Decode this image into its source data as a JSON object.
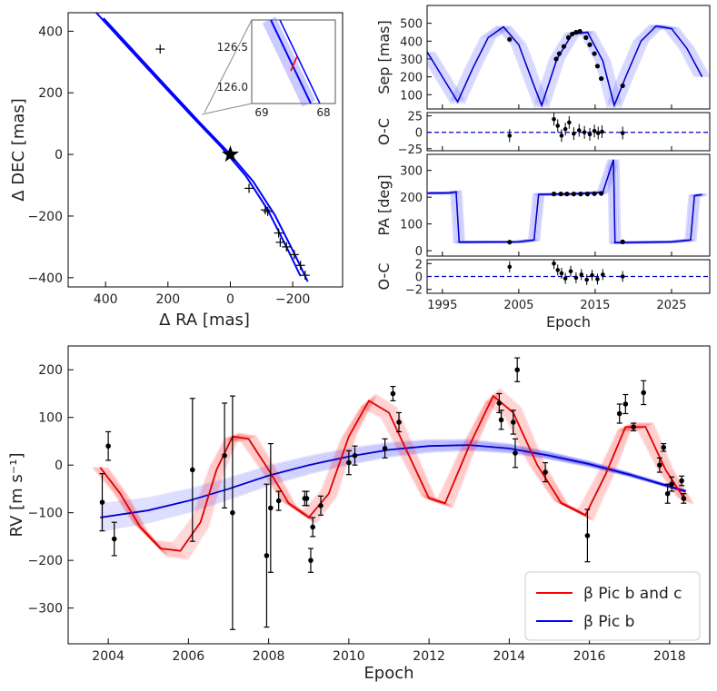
{
  "chart_data": [
    {
      "id": "orbit",
      "type": "scatter",
      "xlabel": "Δ RA [mas]",
      "ylabel": "Δ DEC [mas]",
      "xlim": [
        520,
        -360
      ],
      "ylim": [
        -430,
        460
      ],
      "xticks": [
        400,
        200,
        0,
        -200
      ],
      "xtick_labels": [
        "400",
        "200",
        "0",
        "−200"
      ],
      "yticks": [
        400,
        200,
        0,
        -200,
        -400
      ],
      "ytick_labels": [
        "400",
        "200",
        "0",
        "−200",
        "−400"
      ],
      "star": {
        "x": 0,
        "y": 0
      },
      "orbit_points": [
        {
          "x": 430,
          "y": 460
        },
        {
          "x": 230,
          "y": 240
        },
        {
          "x": 120,
          "y": 120
        },
        {
          "x": 30,
          "y": 25
        },
        {
          "x": -50,
          "y": -70
        },
        {
          "x": -120,
          "y": -180
        },
        {
          "x": -180,
          "y": -300
        },
        {
          "x": -225,
          "y": -395
        }
      ],
      "data_points": [
        {
          "x": 225,
          "y": 342
        },
        {
          "x": -112,
          "y": -180
        },
        {
          "x": -120,
          "y": -185
        },
        {
          "x": -155,
          "y": -255
        },
        {
          "x": -160,
          "y": -285
        },
        {
          "x": -180,
          "y": -300
        },
        {
          "x": -205,
          "y": -325
        },
        {
          "x": -225,
          "y": -360
        },
        {
          "x": -240,
          "y": -392
        },
        {
          "x": -60,
          "y": -110
        }
      ],
      "inset": {
        "xticks": [
          "69",
          "68"
        ],
        "yticks": [
          "126.5",
          "126.0"
        ]
      }
    },
    {
      "id": "sep",
      "type": "line",
      "ylabel": "Sep [mas]",
      "xlim": [
        1993,
        2030
      ],
      "ylim": [
        20,
        600
      ],
      "yticks": [
        100,
        200,
        300,
        400,
        500
      ],
      "ytick_labels": [
        "100",
        "200",
        "300",
        "400",
        "500"
      ],
      "curve": [
        {
          "x": 1993,
          "y": 340
        },
        {
          "x": 1995,
          "y": 200
        },
        {
          "x": 1997,
          "y": 60
        },
        {
          "x": 1999,
          "y": 250
        },
        {
          "x": 2001,
          "y": 420
        },
        {
          "x": 2003,
          "y": 480
        },
        {
          "x": 2005,
          "y": 380
        },
        {
          "x": 2007,
          "y": 150
        },
        {
          "x": 2008,
          "y": 40
        },
        {
          "x": 2010,
          "y": 300
        },
        {
          "x": 2012,
          "y": 440
        },
        {
          "x": 2014,
          "y": 450
        },
        {
          "x": 2016,
          "y": 290
        },
        {
          "x": 2017.5,
          "y": 40
        },
        {
          "x": 2019,
          "y": 200
        },
        {
          "x": 2021,
          "y": 400
        },
        {
          "x": 2023,
          "y": 485
        },
        {
          "x": 2025,
          "y": 470
        },
        {
          "x": 2027,
          "y": 360
        },
        {
          "x": 2029,
          "y": 200
        }
      ],
      "points": [
        {
          "x": 2003.8,
          "y": 410
        },
        {
          "x": 2009.9,
          "y": 300
        },
        {
          "x": 2010.3,
          "y": 330
        },
        {
          "x": 2010.9,
          "y": 370
        },
        {
          "x": 2011.5,
          "y": 420
        },
        {
          "x": 2012,
          "y": 440
        },
        {
          "x": 2012.5,
          "y": 450
        },
        {
          "x": 2013,
          "y": 455
        },
        {
          "x": 2013.8,
          "y": 420
        },
        {
          "x": 2014.3,
          "y": 380
        },
        {
          "x": 2014.9,
          "y": 330
        },
        {
          "x": 2015.3,
          "y": 260
        },
        {
          "x": 2015.8,
          "y": 190
        },
        {
          "x": 2018.6,
          "y": 150
        }
      ]
    },
    {
      "id": "sep_oc",
      "type": "scatter",
      "ylabel": "O-C",
      "xlim": [
        1993,
        2030
      ],
      "ylim": [
        -28,
        30
      ],
      "yticks": [
        25,
        0,
        -25
      ],
      "ytick_labels": [
        "25",
        "0",
        "−25"
      ],
      "points": [
        {
          "x": 2003.8,
          "y": -5
        },
        {
          "x": 2009.6,
          "y": 20
        },
        {
          "x": 2010.1,
          "y": 10
        },
        {
          "x": 2010.6,
          "y": -5
        },
        {
          "x": 2011.1,
          "y": 5
        },
        {
          "x": 2011.6,
          "y": 15
        },
        {
          "x": 2012.2,
          "y": -2
        },
        {
          "x": 2012.9,
          "y": 3
        },
        {
          "x": 2013.6,
          "y": 0
        },
        {
          "x": 2014.3,
          "y": -3
        },
        {
          "x": 2014.9,
          "y": 2
        },
        {
          "x": 2015.4,
          "y": -1
        },
        {
          "x": 2015.9,
          "y": 1
        },
        {
          "x": 2018.6,
          "y": -1
        }
      ]
    },
    {
      "id": "pa",
      "type": "line",
      "ylabel": "PA [deg]",
      "xlim": [
        1993,
        2030
      ],
      "ylim": [
        -20,
        360
      ],
      "yticks": [
        0,
        100,
        200,
        300
      ],
      "ytick_labels": [
        "0",
        "100",
        "200",
        "300"
      ],
      "curve": [
        {
          "x": 1993,
          "y": 215
        },
        {
          "x": 1996,
          "y": 216
        },
        {
          "x": 1996.8,
          "y": 220
        },
        {
          "x": 1997.2,
          "y": 32
        },
        {
          "x": 2005,
          "y": 33
        },
        {
          "x": 2007,
          "y": 40
        },
        {
          "x": 2007.6,
          "y": 210
        },
        {
          "x": 2012,
          "y": 212
        },
        {
          "x": 2016,
          "y": 218
        },
        {
          "x": 2017.4,
          "y": 340
        },
        {
          "x": 2017.6,
          "y": 30
        },
        {
          "x": 2025,
          "y": 33
        },
        {
          "x": 2027.5,
          "y": 40
        },
        {
          "x": 2028,
          "y": 205
        },
        {
          "x": 2029,
          "y": 210
        }
      ],
      "points": [
        {
          "x": 2003.8,
          "y": 32
        },
        {
          "x": 2009.6,
          "y": 212
        },
        {
          "x": 2010.5,
          "y": 212
        },
        {
          "x": 2011.3,
          "y": 212
        },
        {
          "x": 2012.2,
          "y": 212
        },
        {
          "x": 2013.1,
          "y": 212
        },
        {
          "x": 2014,
          "y": 212
        },
        {
          "x": 2014.9,
          "y": 213
        },
        {
          "x": 2015.8,
          "y": 214
        },
        {
          "x": 2018.6,
          "y": 33
        }
      ]
    },
    {
      "id": "pa_oc",
      "type": "scatter",
      "xlabel": "Epoch",
      "ylabel": "O-C",
      "xlim": [
        1993,
        2030
      ],
      "ylim": [
        -2.6,
        2.6
      ],
      "yticks": [
        2,
        0,
        -2
      ],
      "ytick_labels": [
        "2",
        "0",
        "−2"
      ],
      "xticks": [
        1995,
        2005,
        2015,
        2025
      ],
      "xtick_labels": [
        "1995",
        "2005",
        "2015",
        "2025"
      ],
      "points": [
        {
          "x": 2003.8,
          "y": 1.5
        },
        {
          "x": 2009.6,
          "y": 2.0
        },
        {
          "x": 2010.1,
          "y": 1.0
        },
        {
          "x": 2010.6,
          "y": 0.5
        },
        {
          "x": 2011.1,
          "y": -0.3
        },
        {
          "x": 2011.8,
          "y": 0.8
        },
        {
          "x": 2012.5,
          "y": -0.2
        },
        {
          "x": 2013.2,
          "y": 0.3
        },
        {
          "x": 2013.9,
          "y": -0.5
        },
        {
          "x": 2014.6,
          "y": 0.2
        },
        {
          "x": 2015.3,
          "y": -0.4
        },
        {
          "x": 2016,
          "y": 0.3
        },
        {
          "x": 2018.6,
          "y": 0.0
        }
      ]
    },
    {
      "id": "rv",
      "type": "line",
      "xlabel": "Epoch",
      "ylabel": "RV [m s⁻¹]",
      "xlim": [
        2003,
        2019
      ],
      "ylim": [
        -375,
        250
      ],
      "xticks": [
        2004,
        2006,
        2008,
        2010,
        2012,
        2014,
        2016,
        2018
      ],
      "xtick_labels": [
        "2004",
        "2006",
        "2008",
        "2010",
        "2012",
        "2014",
        "2016",
        "2018"
      ],
      "yticks": [
        200,
        100,
        0,
        -100,
        -200,
        -300
      ],
      "ytick_labels": [
        "200",
        "100",
        "0",
        "−100",
        "−200",
        "−300"
      ],
      "series": [
        {
          "name": "β Pic b and c",
          "color": "#ff0000",
          "curve": [
            {
              "x": 2003.8,
              "y": -5
            },
            {
              "x": 2004.3,
              "y": -60
            },
            {
              "x": 2004.8,
              "y": -130
            },
            {
              "x": 2005.3,
              "y": -175
            },
            {
              "x": 2005.8,
              "y": -180
            },
            {
              "x": 2006.3,
              "y": -120
            },
            {
              "x": 2006.7,
              "y": -10
            },
            {
              "x": 2007.1,
              "y": 60
            },
            {
              "x": 2007.5,
              "y": 55
            },
            {
              "x": 2008,
              "y": -10
            },
            {
              "x": 2008.5,
              "y": -80
            },
            {
              "x": 2009,
              "y": -110
            },
            {
              "x": 2009.5,
              "y": -60
            },
            {
              "x": 2010,
              "y": 60
            },
            {
              "x": 2010.5,
              "y": 135
            },
            {
              "x": 2011,
              "y": 110
            },
            {
              "x": 2011.5,
              "y": 20
            },
            {
              "x": 2012,
              "y": -70
            },
            {
              "x": 2012.4,
              "y": -80
            },
            {
              "x": 2013,
              "y": 40
            },
            {
              "x": 2013.6,
              "y": 145
            },
            {
              "x": 2014.1,
              "y": 110
            },
            {
              "x": 2014.7,
              "y": 0
            },
            {
              "x": 2015.3,
              "y": -80
            },
            {
              "x": 2015.9,
              "y": -105
            },
            {
              "x": 2016.4,
              "y": -20
            },
            {
              "x": 2016.9,
              "y": 80
            },
            {
              "x": 2017.4,
              "y": 80
            },
            {
              "x": 2017.9,
              "y": -10
            },
            {
              "x": 2018.4,
              "y": -75
            }
          ]
        },
        {
          "name": "β Pic b",
          "color": "#0000ff",
          "curve": [
            {
              "x": 2003.8,
              "y": -110
            },
            {
              "x": 2005,
              "y": -95
            },
            {
              "x": 2006,
              "y": -75
            },
            {
              "x": 2007,
              "y": -50
            },
            {
              "x": 2008,
              "y": -22
            },
            {
              "x": 2009,
              "y": 0
            },
            {
              "x": 2010,
              "y": 18
            },
            {
              "x": 2011,
              "y": 32
            },
            {
              "x": 2012,
              "y": 40
            },
            {
              "x": 2013,
              "y": 42
            },
            {
              "x": 2014,
              "y": 35
            },
            {
              "x": 2015,
              "y": 20
            },
            {
              "x": 2016,
              "y": 2
            },
            {
              "x": 2017,
              "y": -20
            },
            {
              "x": 2018.4,
              "y": -55
            }
          ]
        }
      ],
      "points": [
        {
          "x": 2003.85,
          "y": -78,
          "err": 60
        },
        {
          "x": 2004.0,
          "y": 40,
          "err": 30
        },
        {
          "x": 2004.15,
          "y": -155,
          "err": 35
        },
        {
          "x": 2006.1,
          "y": -10,
          "err": 150
        },
        {
          "x": 2006.9,
          "y": 20,
          "err": 110
        },
        {
          "x": 2007.1,
          "y": -100,
          "err": 245
        },
        {
          "x": 2007.95,
          "y": -190,
          "err": 150
        },
        {
          "x": 2008.05,
          "y": -90,
          "err": 135
        },
        {
          "x": 2008.25,
          "y": -75,
          "err": 20
        },
        {
          "x": 2008.9,
          "y": -70,
          "err": 15
        },
        {
          "x": 2008.95,
          "y": -70,
          "err": 15
        },
        {
          "x": 2009.05,
          "y": -200,
          "err": 25
        },
        {
          "x": 2009.1,
          "y": -130,
          "err": 20
        },
        {
          "x": 2009.3,
          "y": -85,
          "err": 20
        },
        {
          "x": 2010.0,
          "y": 5,
          "err": 25
        },
        {
          "x": 2010.15,
          "y": 20,
          "err": 20
        },
        {
          "x": 2010.9,
          "y": 35,
          "err": 20
        },
        {
          "x": 2011.1,
          "y": 150,
          "err": 15
        },
        {
          "x": 2011.25,
          "y": 90,
          "err": 20
        },
        {
          "x": 2013.75,
          "y": 130,
          "err": 20
        },
        {
          "x": 2013.8,
          "y": 95,
          "err": 20
        },
        {
          "x": 2014.1,
          "y": 90,
          "err": 25
        },
        {
          "x": 2014.15,
          "y": 25,
          "err": 30
        },
        {
          "x": 2014.2,
          "y": 200,
          "err": 25
        },
        {
          "x": 2014.9,
          "y": -15,
          "err": 20
        },
        {
          "x": 2015.95,
          "y": -148,
          "err": 55
        },
        {
          "x": 2016.75,
          "y": 108,
          "err": 20
        },
        {
          "x": 2016.9,
          "y": 128,
          "err": 20
        },
        {
          "x": 2017.1,
          "y": 80,
          "err": 8
        },
        {
          "x": 2017.35,
          "y": 152,
          "err": 25
        },
        {
          "x": 2017.75,
          "y": 0,
          "err": 15
        },
        {
          "x": 2017.85,
          "y": 37,
          "err": 8
        },
        {
          "x": 2017.95,
          "y": -60,
          "err": 20
        },
        {
          "x": 2018.05,
          "y": -40,
          "err": 15
        },
        {
          "x": 2018.3,
          "y": -33,
          "err": 10
        },
        {
          "x": 2018.35,
          "y": -70,
          "err": 10
        }
      ],
      "legend_position": "lower-right"
    }
  ]
}
